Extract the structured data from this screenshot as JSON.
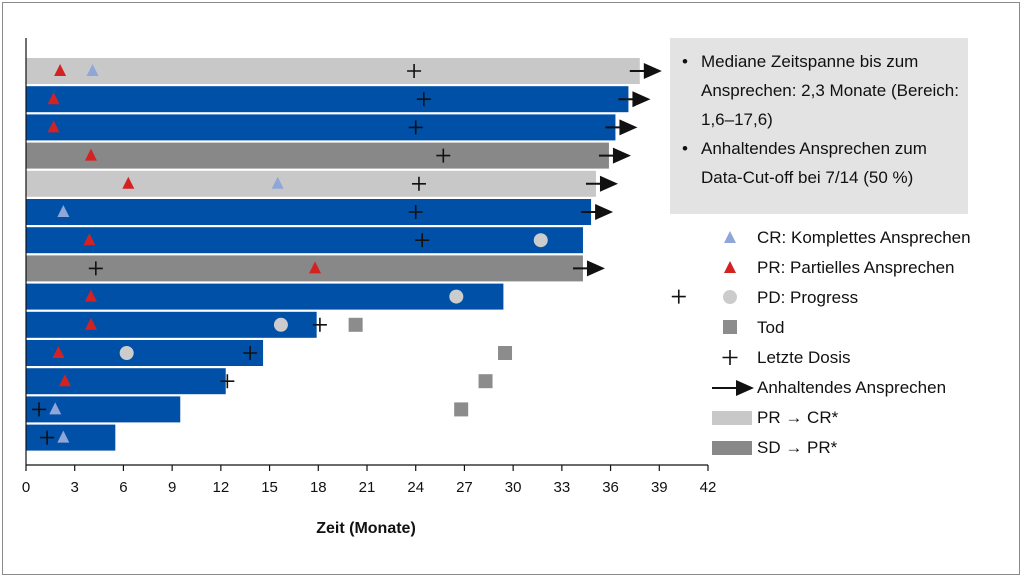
{
  "colors": {
    "blue_bar": "#0050a8",
    "light_gray_bar": "#c8c8c8",
    "dark_gray_bar": "#888888",
    "cr_marker": "#8fa6d8",
    "pr_marker": "#d42222",
    "pd_marker": "#cccccc",
    "death_marker": "#8c8c8c",
    "dose_marker": "#111111",
    "arrow": "#111111",
    "info_box": "#e3e3e3"
  },
  "infobox": {
    "bullets": [
      {
        "text": "Mediane Zeitspanne bis zum Ansprechen: 2,3 Monate (Bereich: 1,6–17,6)"
      },
      {
        "text": "Anhaltendes Ansprechen zum Data-Cut-off bei 7/14 (50 %)"
      }
    ],
    "bullet_symbol": "•"
  },
  "legend": [
    {
      "icon": "cr-triangle-icon",
      "label": "CR: Komplettes Ansprechen"
    },
    {
      "icon": "pr-triangle-icon",
      "label": "PR: Partielles Ansprechen"
    },
    {
      "icon": "pd-circle-icon",
      "label": "PD: Progress"
    },
    {
      "icon": "death-square-icon",
      "label": "Tod"
    },
    {
      "icon": "last-dose-plus-icon",
      "label": "Letzte Dosis"
    },
    {
      "icon": "ongoing-arrow-icon",
      "label": "Anhaltendes Ansprechen"
    },
    {
      "icon": "pr-to-cr-swatch",
      "label": "PR → CR*"
    },
    {
      "icon": "sd-to-pr-swatch",
      "label": "SD → PR*"
    }
  ],
  "chart_data": {
    "type": "bar",
    "orientation": "horizontal",
    "xlabel": "Zeit (Monate)",
    "ylabel": "",
    "title": "",
    "xlim": [
      0,
      42
    ],
    "xticks": [
      0,
      3,
      6,
      9,
      12,
      15,
      18,
      21,
      24,
      27,
      30,
      33,
      36,
      39,
      42
    ],
    "grid": false,
    "legend_position": "right",
    "patients": [
      {
        "duration": 37.8,
        "category": "PR → CR*",
        "cr": [
          4.1
        ],
        "pr": [
          2.1
        ],
        "pd": [],
        "last_dose": [
          23.9
        ],
        "ongoing": true,
        "death": null
      },
      {
        "duration": 37.1,
        "category": "blue",
        "cr": [],
        "pr": [
          1.7
        ],
        "pd": [],
        "last_dose": [
          24.5
        ],
        "ongoing": true,
        "death": null
      },
      {
        "duration": 36.3,
        "category": "blue",
        "cr": [],
        "pr": [
          1.7
        ],
        "pd": [],
        "last_dose": [
          24.0
        ],
        "ongoing": true,
        "death": null
      },
      {
        "duration": 35.9,
        "category": "SD → PR*",
        "cr": [],
        "pr": [
          4.0
        ],
        "pd": [],
        "last_dose": [
          25.7
        ],
        "ongoing": true,
        "death": null
      },
      {
        "duration": 35.1,
        "category": "PR → CR*",
        "cr": [
          15.5
        ],
        "pr": [
          6.3
        ],
        "pd": [],
        "last_dose": [
          24.2
        ],
        "ongoing": true,
        "death": null
      },
      {
        "duration": 34.8,
        "category": "blue",
        "cr": [
          2.3
        ],
        "pr": [],
        "pd": [],
        "last_dose": [
          24.0
        ],
        "ongoing": true,
        "death": null
      },
      {
        "duration": 34.3,
        "category": "blue",
        "cr": [],
        "pr": [
          3.9
        ],
        "pd": [
          31.7
        ],
        "last_dose": [
          24.4
        ],
        "ongoing": false,
        "death": null
      },
      {
        "duration": 34.3,
        "category": "SD → PR*",
        "cr": [],
        "pr": [
          17.8
        ],
        "pd": [],
        "last_dose": [
          4.3
        ],
        "ongoing": true,
        "death": null
      },
      {
        "duration": 29.4,
        "category": "blue",
        "cr": [],
        "pr": [
          4.0
        ],
        "pd": [
          26.5
        ],
        "last_dose": [
          40.2
        ],
        "ongoing": false,
        "death": null
      },
      {
        "duration": 17.9,
        "category": "blue",
        "cr": [],
        "pr": [
          4.0
        ],
        "pd": [
          15.7
        ],
        "last_dose": [
          18.1
        ],
        "ongoing": false,
        "death": 20.3
      },
      {
        "duration": 14.6,
        "category": "blue",
        "cr": [],
        "pr": [
          2.0
        ],
        "pd": [
          6.2
        ],
        "last_dose": [
          13.8
        ],
        "ongoing": false,
        "death": 29.5
      },
      {
        "duration": 12.3,
        "category": "blue",
        "cr": [],
        "pr": [
          2.4
        ],
        "pd": [],
        "last_dose": [
          12.4
        ],
        "ongoing": false,
        "death": 28.3
      },
      {
        "duration": 9.5,
        "category": "blue",
        "cr": [
          1.8
        ],
        "pr": [],
        "pd": [],
        "last_dose": [
          0.8
        ],
        "ongoing": false,
        "death": 26.8
      },
      {
        "duration": 5.5,
        "category": "blue",
        "cr": [
          2.3
        ],
        "pr": [],
        "pd": [],
        "last_dose": [
          1.3
        ],
        "ongoing": false,
        "death": null
      }
    ]
  }
}
